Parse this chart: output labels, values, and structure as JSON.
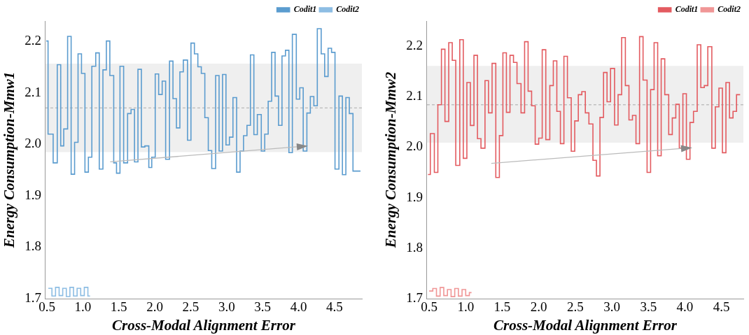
{
  "chart_data": [
    {
      "type": "step",
      "xlabel": "Cross-Modal Alignment Error",
      "ylabel": "Energy Consumption-Mmw1",
      "xlim": [
        0.48,
        4.88
      ],
      "ylim": [
        1.7,
        2.24
      ],
      "xticks": [
        0.5,
        {
          "value": 1,
          "label": "1.0"
        },
        1.5,
        {
          "value": 2,
          "label": "2.0"
        },
        2.5,
        {
          "value": 3,
          "label": "3.0"
        },
        3.5,
        {
          "value": 4,
          "label": "4.0"
        },
        4.5
      ],
      "yticks": [
        1.7,
        1.8,
        1.9,
        {
          "value": 2,
          "label": "2.0"
        },
        2.1,
        2.2
      ],
      "legend": "top right",
      "marker": "none",
      "bands": [
        {
          "axis": "y",
          "from": 1.985,
          "to": 2.157,
          "color": "#efefef"
        }
      ],
      "ref_lines": [
        {
          "axis": "y",
          "value": 2.071,
          "color": "#aaaaaa",
          "line_style": "dashed"
        }
      ],
      "series": [
        {
          "name": "Codit1",
          "color": "#5b9ccf",
          "x": [
            0.49,
            0.516,
            0.587,
            0.644,
            0.692,
            0.734,
            0.788,
            0.837,
            0.885,
            0.933,
            0.981,
            1.029,
            1.077,
            1.125,
            1.179,
            1.228,
            1.279,
            1.327,
            1.375,
            1.429,
            1.468,
            1.516,
            1.567,
            1.622,
            1.67,
            1.718,
            1.766,
            1.814,
            1.862,
            1.917,
            1.958,
            2.006,
            2.054,
            2.103,
            2.151,
            2.205,
            2.253,
            2.301,
            2.349,
            2.397,
            2.455,
            2.503,
            2.551,
            2.599,
            2.647,
            2.696,
            2.744,
            2.792,
            2.846,
            2.894,
            2.942,
            2.99,
            3.038,
            3.087,
            3.138,
            3.186,
            3.234,
            3.282,
            3.33,
            3.378,
            3.426,
            3.481,
            3.529,
            3.577,
            3.625,
            3.673,
            3.721,
            3.769,
            3.817,
            3.865,
            3.913,
            3.968,
            4.016,
            4.064,
            4.115,
            4.163,
            4.212,
            4.26,
            4.314,
            4.362,
            4.41,
            4.458,
            4.506,
            4.561,
            4.609,
            4.657,
            4.705,
            4.756,
            4.86
          ],
          "values": [
            2.201,
            2.02,
            1.964,
            2.155,
            1.997,
            2.03,
            2.21,
            1.942,
            2.004,
            2.176,
            2.138,
            1.946,
            1.975,
            2.152,
            2.178,
            1.952,
            2.145,
            2.201,
            2.134,
            1.964,
            1.944,
            2.152,
            1.964,
            2.06,
            2.068,
            1.966,
            2.146,
            1.995,
            1.997,
            1.955,
            1.975,
            2.137,
            2.097,
            2.123,
            1.971,
            2.162,
            2.089,
            2.032,
            2.141,
            2.164,
            2.008,
            2.197,
            2.176,
            2.151,
            2.138,
            2.052,
            1.988,
            1.953,
            2.134,
            1.987,
            2.136,
            1.999,
            2.014,
            2.091,
            1.946,
            1.987,
            2.017,
            2.037,
            2.174,
            2.019,
            2.058,
            1.987,
            2.02,
            2.084,
            2.179,
            2.094,
            2.037,
            2.172,
            2.183,
            1.984,
            2.214,
            2.088,
            2.11,
            1.987,
            2.061,
            2.093,
            2.075,
            2.225,
            2.176,
            2.132,
            2.187,
            2.179,
            1.952,
            2.094,
            1.941,
            2.091,
            2.06,
            1.948,
            1.948
          ]
        },
        {
          "name": "Codit2",
          "color": "#8dbde3",
          "x": [
            0.52,
            0.57,
            0.62,
            0.67,
            0.72,
            0.77,
            0.82,
            0.87,
            0.92,
            0.97,
            1.02,
            1.07,
            1.1
          ],
          "values": [
            1.72,
            1.705,
            1.722,
            1.706,
            1.72,
            1.704,
            1.722,
            1.705,
            1.72,
            1.706,
            1.722,
            1.705,
            1.705
          ]
        }
      ]
    },
    {
      "type": "step",
      "xlabel": "Cross-Modal Alignment Error",
      "ylabel": "Energy Consumption-Mmw2",
      "xlim": [
        0.47,
        4.8
      ],
      "ylim": [
        1.7,
        2.25
      ],
      "xticks": [
        0.5,
        {
          "value": 1,
          "label": "1.0"
        },
        1.5,
        {
          "value": 2,
          "label": "2.0"
        },
        2.5,
        {
          "value": 3,
          "label": "3.0"
        },
        3.5,
        {
          "value": 4,
          "label": "4.0"
        },
        4.5
      ],
      "yticks": [
        1.7,
        1.8,
        1.9,
        {
          "value": 2,
          "label": "2.0"
        },
        2.1,
        2.2
      ],
      "legend": "top right",
      "marker": "none",
      "bands": [
        {
          "axis": "y",
          "from": 2.009,
          "to": 2.161,
          "color": "#efefef"
        }
      ],
      "ref_lines": [
        {
          "axis": "y",
          "value": 2.084,
          "color": "#aaaaaa",
          "line_style": "dashed"
        }
      ],
      "series": [
        {
          "name": "Codit1",
          "color": "#e35b60",
          "x": [
            0.484,
            0.516,
            0.571,
            0.619,
            0.668,
            0.716,
            0.768,
            0.816,
            0.864,
            0.919,
            0.967,
            1.016,
            1.064,
            1.113,
            1.161,
            1.209,
            1.264,
            1.312,
            1.361,
            1.412,
            1.461,
            1.509,
            1.557,
            1.606,
            1.654,
            1.702,
            1.757,
            1.806,
            1.854,
            1.902,
            1.951,
            1.999,
            2.047,
            2.096,
            2.151,
            2.199,
            2.247,
            2.296,
            2.344,
            2.392,
            2.444,
            2.492,
            2.541,
            2.589,
            2.637,
            2.686,
            2.741,
            2.789,
            2.837,
            2.886,
            2.934,
            2.982,
            3.037,
            3.085,
            3.134,
            3.185,
            3.234,
            3.282,
            3.33,
            3.379,
            3.427,
            3.482,
            3.53,
            3.578,
            3.627,
            3.675,
            3.724,
            3.778,
            3.827,
            3.875,
            3.923,
            3.972,
            4.02,
            4.069,
            4.117,
            4.168,
            4.217,
            4.265,
            4.313,
            4.368,
            4.416,
            4.465,
            4.513,
            4.561,
            4.61,
            4.658,
            4.706,
            4.755
          ],
          "values": [
            1.946,
            2.027,
            1.95,
            2.084,
            2.194,
            2.051,
            2.207,
            2.172,
            1.964,
            2.213,
            1.978,
            2.128,
            2.043,
            2.182,
            2.017,
            1.998,
            2.132,
            2.068,
            2.166,
            1.94,
            2.023,
            2.187,
            2.069,
            2.182,
            2.168,
            2.126,
            2.068,
            2.209,
            2.111,
            2.082,
            2.006,
            2.018,
            2.193,
            2.015,
            2.122,
            2.171,
            2.071,
            2.007,
            2.18,
            2.098,
            1.992,
            2.052,
            2.104,
            2.11,
            2.068,
            2.046,
            1.974,
            1.943,
            2.059,
            2.148,
            2.09,
            2.156,
            2.044,
            2.104,
            2.217,
            2.122,
            2.054,
            2.063,
            2.007,
            2.219,
            2.133,
            1.95,
            2.114,
            2.207,
            1.983,
            2.175,
            2.104,
            2.025,
            2.058,
            2.085,
            1.998,
            2.106,
            1.976,
            2.049,
            2.071,
            2.203,
            2.118,
            2.122,
            2.199,
            1.998,
            2.08,
            2.117,
            1.989,
            2.128,
            2.058,
            2.071,
            2.104,
            2.104
          ]
        },
        {
          "name": "Codit2",
          "color": "#f09696",
          "x": [
            0.5,
            0.55,
            0.6,
            0.65,
            0.7,
            0.75,
            0.8,
            0.85,
            0.9,
            0.95,
            1.0,
            1.05,
            1.08
          ],
          "values": [
            1.715,
            1.72,
            1.705,
            1.722,
            1.706,
            1.718,
            1.704,
            1.72,
            1.705,
            1.718,
            1.706,
            1.712,
            1.712
          ]
        }
      ]
    }
  ]
}
